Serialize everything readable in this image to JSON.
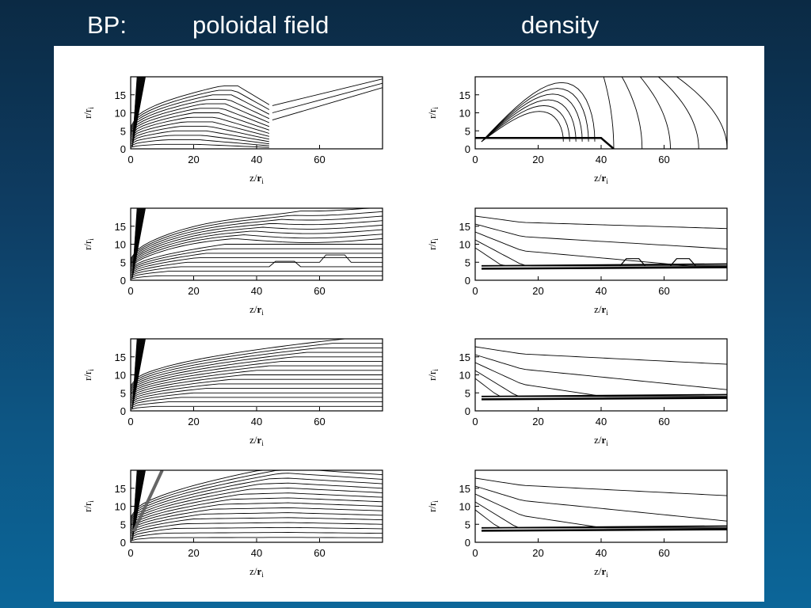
{
  "slide": {
    "label_bp": "BP:",
    "label_poloidal": "poloidal field",
    "label_density": "density"
  },
  "chart_data": {
    "type": "contour",
    "layout": "4 rows x 2 columns",
    "columns": [
      "poloidal field",
      "density"
    ],
    "panels_per_column": 4,
    "xlabel": {
      "main": "z/",
      "bold": "r",
      "sub": "i"
    },
    "ylabel": {
      "main": "r/",
      "rnorm": "r",
      "sub": "i"
    },
    "xlim": [
      0,
      80
    ],
    "ylim": [
      0,
      20
    ],
    "xticks": [
      0,
      20,
      40,
      60
    ],
    "yticks": [
      0,
      5,
      10,
      15
    ],
    "x_tick_labels": [
      "0",
      "20",
      "40",
      "60"
    ],
    "y_tick_labels": [
      "0",
      "5",
      "10",
      "15"
    ],
    "line_color": "#000000",
    "highlight_color": "#666666"
  }
}
